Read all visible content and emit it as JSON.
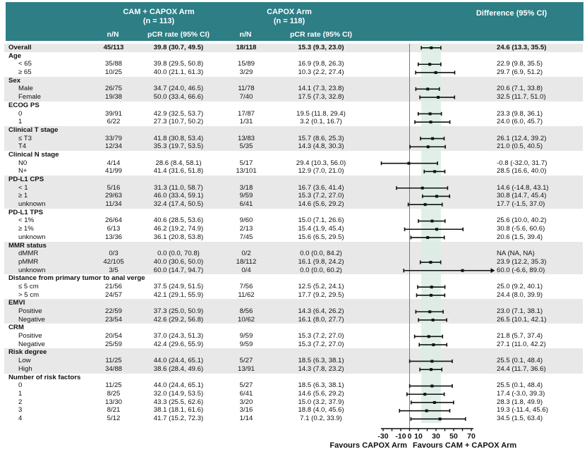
{
  "header": {
    "arm1": {
      "title": "CAM + CAPOX Arm",
      "n": "(n = 113)",
      "col_nN": "n/N",
      "col_pcr": "pCR rate (95% CI)"
    },
    "arm2": {
      "title": "CAPOX Arm",
      "n": "(n = 118)",
      "col_nN": "n/N",
      "col_pcr": "pCR rate (95% CI)"
    },
    "diff_col": "Difference (95% CI)"
  },
  "footer": {
    "favours_left": "Favours CAPOX Arm",
    "favours_right": "Favours CAM + CAPOX Arm"
  },
  "colors": {
    "header_teal": "#2E7E86",
    "row_shade": "#E8E8E8",
    "band_mint": "#DAEDE4",
    "line_black": "#111111",
    "zero_line_gray": "#7A7A7A"
  },
  "chart_data": {
    "type": "forest",
    "x_axis": {
      "range": [
        -30,
        70
      ],
      "ticks": [
        -30,
        -20,
        -10,
        0,
        10,
        20,
        30,
        40,
        50,
        60,
        70
      ],
      "labeled_ticks": [
        -30,
        -10,
        0,
        10,
        30,
        50,
        70
      ]
    },
    "reference_line": 0,
    "shaded_band": [
      13.3,
      35.5
    ],
    "rows": [
      {
        "t": "d",
        "label": "Overall",
        "bold": true,
        "indent": 0,
        "shade": true,
        "a_nN": "45/113",
        "a_pcr": "39.8 (30.7, 49.5)",
        "b_nN": "18/118",
        "b_pcr": "15.3 (9.3, 23.0)",
        "diff": "24.6 (13.3, 35.5)",
        "est": 24.6,
        "lo": 13.3,
        "hi": 35.5
      },
      {
        "t": "s",
        "label": "Age",
        "shade": false
      },
      {
        "t": "d",
        "label": "< 65",
        "indent": 1,
        "shade": false,
        "a_nN": "35/88",
        "a_pcr": "39.8 (29.5, 50.8)",
        "b_nN": "15/89",
        "b_pcr": "16.9 (9.8, 26.3)",
        "diff": "22.9 (9.8, 35.5)",
        "est": 22.9,
        "lo": 9.8,
        "hi": 35.5
      },
      {
        "t": "d",
        "label": "≥ 65",
        "indent": 1,
        "shade": false,
        "a_nN": "10/25",
        "a_pcr": "40.0 (21.1, 61.3)",
        "b_nN": "3/29",
        "b_pcr": "10.3 (2.2, 27.4)",
        "diff": "29.7 (6.9, 51.2)",
        "est": 29.7,
        "lo": 6.9,
        "hi": 51.2
      },
      {
        "t": "s",
        "label": "Sex",
        "shade": true
      },
      {
        "t": "d",
        "label": "Male",
        "indent": 1,
        "shade": true,
        "a_nN": "26/75",
        "a_pcr": "34.7 (24.0, 46.5)",
        "b_nN": "11/78",
        "b_pcr": "14.1 (7.3, 23.8)",
        "diff": "20.6 (7.1, 33.8)",
        "est": 20.6,
        "lo": 7.1,
        "hi": 33.8
      },
      {
        "t": "d",
        "label": "Female",
        "indent": 1,
        "shade": true,
        "a_nN": "19/38",
        "a_pcr": "50.0 (33.4, 66.6)",
        "b_nN": "7/40",
        "b_pcr": "17.5 (7.3, 32.8)",
        "diff": "32.5 (11.7, 51.0)",
        "est": 32.5,
        "lo": 11.7,
        "hi": 51.0
      },
      {
        "t": "s",
        "label": "ECOG PS",
        "shade": false
      },
      {
        "t": "d",
        "label": "0",
        "indent": 1,
        "shade": false,
        "a_nN": "39/91",
        "a_pcr": "42.9 (32.5, 53.7)",
        "b_nN": "17/87",
        "b_pcr": "19.5 (11.8, 29.4)",
        "diff": "23.3 (9.8, 36.1)",
        "est": 23.3,
        "lo": 9.8,
        "hi": 36.1
      },
      {
        "t": "d",
        "label": "1",
        "indent": 1,
        "shade": false,
        "a_nN": "6/22",
        "a_pcr": "27.3 (10.7, 50.2)",
        "b_nN": "1/31",
        "b_pcr": "3.2 (0.1, 16.7)",
        "diff": "24.0 (6.0, 45.7)",
        "est": 24.0,
        "lo": 6.0,
        "hi": 45.7
      },
      {
        "t": "s",
        "label": "Clinical T stage",
        "shade": true
      },
      {
        "t": "d",
        "label": "≤ T3",
        "indent": 1,
        "shade": true,
        "a_nN": "33/79",
        "a_pcr": "41.8 (30.8, 53.4)",
        "b_nN": "13/83",
        "b_pcr": "15.7 (8.6, 25.3)",
        "diff": "26.1 (12.4, 39.2)",
        "est": 26.1,
        "lo": 12.4,
        "hi": 39.2
      },
      {
        "t": "d",
        "label": "T4",
        "indent": 1,
        "shade": true,
        "a_nN": "12/34",
        "a_pcr": "35.3 (19.7, 53.5)",
        "b_nN": "5/35",
        "b_pcr": "14.3 (4.8, 30.3)",
        "diff": "21.0 (0.5, 40.5)",
        "est": 21.0,
        "lo": 0.5,
        "hi": 40.5
      },
      {
        "t": "s",
        "label": "Clinical N stage",
        "shade": false
      },
      {
        "t": "d",
        "label": "N0",
        "indent": 1,
        "shade": false,
        "a_nN": "4/14",
        "a_pcr": "28.6 (8.4, 58.1)",
        "b_nN": "5/17",
        "b_pcr": "29.4 (10.3, 56.0)",
        "diff": "-0.8 (-32.0, 31.7)",
        "est": -0.8,
        "lo": -32.0,
        "hi": 31.7
      },
      {
        "t": "d",
        "label": "N+",
        "indent": 1,
        "shade": false,
        "a_nN": "41/99",
        "a_pcr": "41.4 (31.6, 51.8)",
        "b_nN": "13/101",
        "b_pcr": "12.9 (7.0, 21.0)",
        "diff": "28.5 (16.6, 40.0)",
        "est": 28.5,
        "lo": 16.6,
        "hi": 40.0
      },
      {
        "t": "s",
        "label": "PD-L1 CPS",
        "shade": true
      },
      {
        "t": "d",
        "label": "< 1",
        "indent": 1,
        "shade": true,
        "a_nN": "5/16",
        "a_pcr": "31.3 (11.0, 58.7)",
        "b_nN": "3/18",
        "b_pcr": "16.7 (3.6, 41.4)",
        "diff": "14.6 (-14.8, 43.1)",
        "est": 14.6,
        "lo": -14.8,
        "hi": 43.1
      },
      {
        "t": "d",
        "label": "≥ 1",
        "indent": 1,
        "shade": true,
        "a_nN": "29/63",
        "a_pcr": "46.0 (33.4, 59.1)",
        "b_nN": "9/59",
        "b_pcr": "15.3 (7.2, 27.0)",
        "diff": "30.8 (14.7, 45.4)",
        "est": 30.8,
        "lo": 14.7,
        "hi": 45.4
      },
      {
        "t": "d",
        "label": "unknown",
        "indent": 1,
        "shade": true,
        "a_nN": "11/34",
        "a_pcr": "32.4 (17.4, 50.5)",
        "b_nN": "6/41",
        "b_pcr": "14.6 (5.6, 29.2)",
        "diff": "17.7 (-1.5, 37.0)",
        "est": 17.7,
        "lo": -1.5,
        "hi": 37.0
      },
      {
        "t": "s",
        "label": "PD-L1 TPS",
        "shade": false
      },
      {
        "t": "d",
        "label": "< 1%",
        "indent": 1,
        "shade": false,
        "a_nN": "26/64",
        "a_pcr": "40.6 (28.5, 53.6)",
        "b_nN": "9/60",
        "b_pcr": "15.0 (7.1, 26.6)",
        "diff": "25.6 (10.0, 40.2)",
        "est": 25.6,
        "lo": 10.0,
        "hi": 40.2
      },
      {
        "t": "d",
        "label": "≥ 1%",
        "indent": 1,
        "shade": false,
        "a_nN": "6/13",
        "a_pcr": "46.2 (19.2, 74.9)",
        "b_nN": "2/13",
        "b_pcr": "15.4 (1.9, 45.4)",
        "diff": "30.8 (-5.6, 60.6)",
        "est": 30.8,
        "lo": -5.6,
        "hi": 60.6
      },
      {
        "t": "d",
        "label": "unknown",
        "indent": 1,
        "shade": false,
        "a_nN": "13/36",
        "a_pcr": "36.1 (20.8, 53.8)",
        "b_nN": "7/45",
        "b_pcr": "15.6 (6.5, 29.5)",
        "diff": "20.6 (1.5, 39.4)",
        "est": 20.6,
        "lo": 1.5,
        "hi": 39.4
      },
      {
        "t": "s",
        "label": "MMR status",
        "shade": true
      },
      {
        "t": "d",
        "label": "dMMR",
        "indent": 1,
        "shade": true,
        "a_nN": "0/3",
        "a_pcr": "0.0 (0.0, 70.8)",
        "b_nN": "0/2",
        "b_pcr": "0.0 (0.0, 84.2)",
        "diff": "NA (NA, NA)",
        "est": null,
        "lo": null,
        "hi": null
      },
      {
        "t": "d",
        "label": "pMMR",
        "indent": 1,
        "shade": true,
        "a_nN": "42/105",
        "a_pcr": "40.0 (30.6, 50.0)",
        "b_nN": "18/112",
        "b_pcr": "16.1 (9.8, 24.2)",
        "diff": "23.9 (12.2, 35.3)",
        "est": 23.9,
        "lo": 12.2,
        "hi": 35.3
      },
      {
        "t": "d",
        "label": "unknown",
        "indent": 1,
        "shade": true,
        "a_nN": "3/5",
        "a_pcr": "60.0 (14.7, 94.7)",
        "b_nN": "0/4",
        "b_pcr": "0.0 (0.0, 60.2)",
        "diff": "60.0 (-6.6, 89.0)",
        "est": 60.0,
        "lo": -6.6,
        "hi": 89.0,
        "arrow": true
      },
      {
        "t": "s",
        "label": "Distance from primary tumor to anal verge",
        "shade": false
      },
      {
        "t": "d",
        "label": "≤ 5 cm",
        "indent": 1,
        "shade": false,
        "a_nN": "21/56",
        "a_pcr": "37.5 (24.9, 51.5)",
        "b_nN": "7/56",
        "b_pcr": "12.5 (5.2, 24.1)",
        "diff": "25.0 (9.2, 40.1)",
        "est": 25.0,
        "lo": 9.2,
        "hi": 40.1
      },
      {
        "t": "d",
        "label": "> 5 cm",
        "indent": 1,
        "shade": false,
        "a_nN": "24/57",
        "a_pcr": "42.1 (29.1, 55.9)",
        "b_nN": "11/62",
        "b_pcr": "17.7 (9.2, 29.5)",
        "diff": "24.4 (8.0, 39.9)",
        "est": 24.4,
        "lo": 8.0,
        "hi": 39.9
      },
      {
        "t": "s",
        "label": "EMVI",
        "shade": true
      },
      {
        "t": "d",
        "label": "Positive",
        "indent": 1,
        "shade": true,
        "a_nN": "22/59",
        "a_pcr": "37.3 (25.0, 50.9)",
        "b_nN": "8/56",
        "b_pcr": "14.3 (6.4, 26.2)",
        "diff": "23.0 (7.1, 38.1)",
        "est": 23.0,
        "lo": 7.1,
        "hi": 38.1
      },
      {
        "t": "d",
        "label": "Negative",
        "indent": 1,
        "shade": true,
        "a_nN": "23/54",
        "a_pcr": "42.6 (29.2, 56.8)",
        "b_nN": "10/62",
        "b_pcr": "16.1 (8.0, 27.7)",
        "diff": "26.5 (10.1, 42.1)",
        "est": 26.5,
        "lo": 10.1,
        "hi": 42.1
      },
      {
        "t": "s",
        "label": "CRM",
        "shade": false
      },
      {
        "t": "d",
        "label": "Positive",
        "indent": 1,
        "shade": false,
        "a_nN": "20/54",
        "a_pcr": "37.0 (24.3, 51.3)",
        "b_nN": "9/59",
        "b_pcr": "15.3 (7.2, 27.0)",
        "diff": "21.8 (5.7, 37.4)",
        "est": 21.8,
        "lo": 5.7,
        "hi": 37.4
      },
      {
        "t": "d",
        "label": "Negative",
        "indent": 1,
        "shade": false,
        "a_nN": "25/59",
        "a_pcr": "42.4 (29.6, 55.9)",
        "b_nN": "9/59",
        "b_pcr": "15.3 (7.2, 27.0)",
        "diff": "27.1 (11.0, 42.2)",
        "est": 27.1,
        "lo": 11.0,
        "hi": 42.2
      },
      {
        "t": "s",
        "label": "Risk degree",
        "shade": true
      },
      {
        "t": "d",
        "label": "Low",
        "indent": 1,
        "shade": true,
        "a_nN": "11/25",
        "a_pcr": "44.0 (24.4, 65.1)",
        "b_nN": "5/27",
        "b_pcr": "18.5 (6.3, 38.1)",
        "diff": "25.5 (0.1, 48.4)",
        "est": 25.5,
        "lo": 0.1,
        "hi": 48.4
      },
      {
        "t": "d",
        "label": "High",
        "indent": 1,
        "shade": true,
        "a_nN": "34/88",
        "a_pcr": "38.6 (28.4, 49.6)",
        "b_nN": "13/91",
        "b_pcr": "14.3 (7.8, 23.2)",
        "diff": "24.4 (11.7, 36.6)",
        "est": 24.4,
        "lo": 11.7,
        "hi": 36.6
      },
      {
        "t": "s",
        "label": "Number of risk factors",
        "shade": false
      },
      {
        "t": "d",
        "label": "0",
        "indent": 1,
        "shade": false,
        "a_nN": "11/25",
        "a_pcr": "44.0 (24.4, 65.1)",
        "b_nN": "5/27",
        "b_pcr": "18.5 (6.3, 38.1)",
        "diff": "25.5 (0.1, 48.4)",
        "est": 25.5,
        "lo": 0.1,
        "hi": 48.4
      },
      {
        "t": "d",
        "label": "1",
        "indent": 1,
        "shade": false,
        "a_nN": "8/25",
        "a_pcr": "32.0 (14.9, 53.5)",
        "b_nN": "6/41",
        "b_pcr": "14.6 (5.6, 29.2)",
        "diff": "17.4 (-3.0, 39.3)",
        "est": 17.4,
        "lo": -3.0,
        "hi": 39.3
      },
      {
        "t": "d",
        "label": "2",
        "indent": 1,
        "shade": false,
        "a_nN": "13/30",
        "a_pcr": "43.3 (25.5, 62.6)",
        "b_nN": "3/20",
        "b_pcr": "15.0 (3.2, 37.9)",
        "diff": "28.3 (1.8, 49.9)",
        "est": 28.3,
        "lo": 1.8,
        "hi": 49.9
      },
      {
        "t": "d",
        "label": "3",
        "indent": 1,
        "shade": false,
        "a_nN": "8/21",
        "a_pcr": "38.1 (18.1, 61.6)",
        "b_nN": "3/16",
        "b_pcr": "18.8 (4.0, 45.6)",
        "diff": "19.3 (-11.4, 45.6)",
        "est": 19.3,
        "lo": -11.4,
        "hi": 45.6
      },
      {
        "t": "d",
        "label": "4",
        "indent": 1,
        "shade": false,
        "a_nN": "5/12",
        "a_pcr": "41.7 (15.2, 72.3)",
        "b_nN": "1/14",
        "b_pcr": "7.1 (0.2, 33.9)",
        "diff": "34.5 (1.5, 63.4)",
        "est": 34.5,
        "lo": 1.5,
        "hi": 63.4
      }
    ]
  }
}
